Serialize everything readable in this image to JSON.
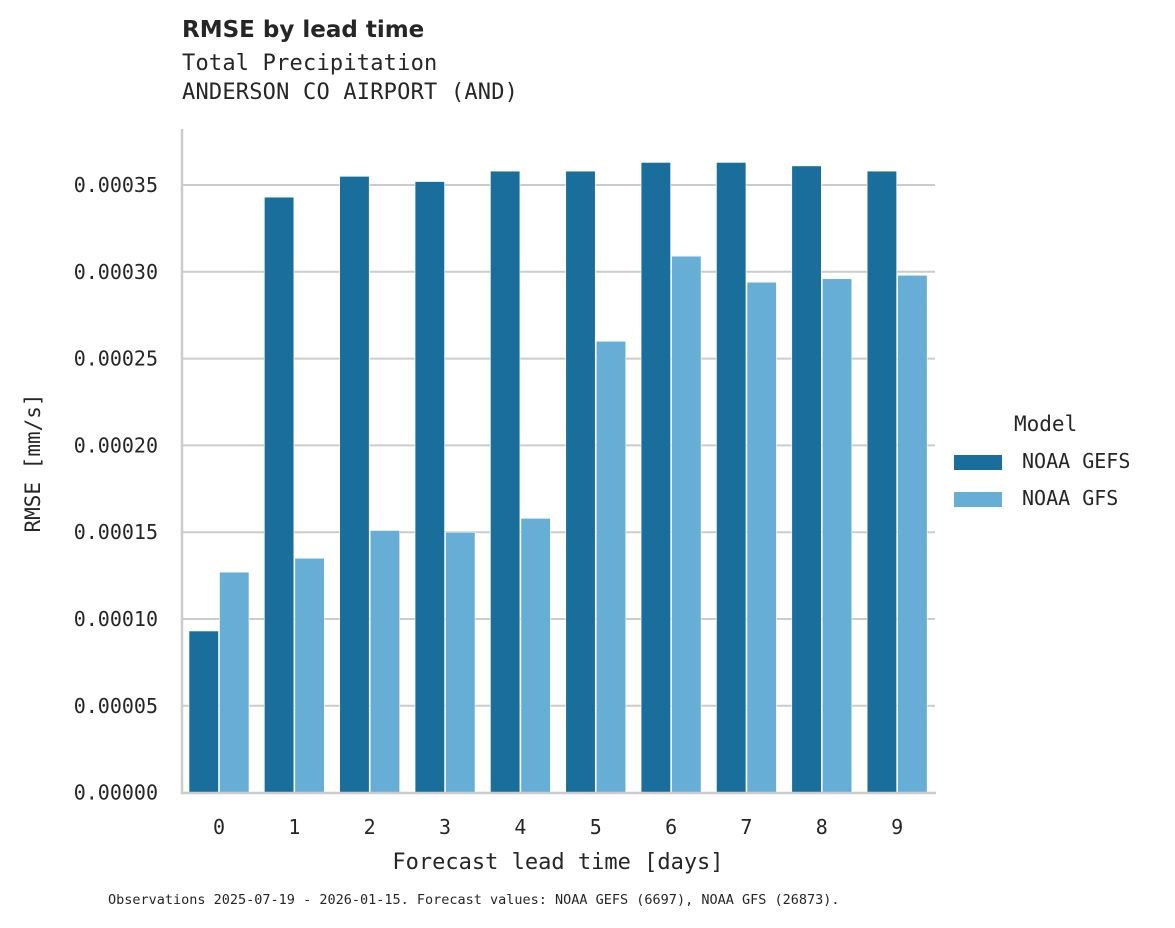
{
  "header": {
    "title": "RMSE by lead time",
    "subtitle_1": "Total Precipitation",
    "subtitle_2": "ANDERSON CO AIRPORT (AND)"
  },
  "legend": {
    "title": "Model",
    "items": [
      {
        "label": "NOAA GEFS",
        "color": "#1a6e9c"
      },
      {
        "label": "NOAA GFS",
        "color": "#67aed6"
      }
    ]
  },
  "footnote": "Observations 2025-07-19 - 2026-01-15. Forecast values: NOAA GEFS (6697), NOAA GFS (26873).",
  "chart_data": {
    "type": "bar",
    "title": "RMSE by lead time",
    "subtitle": "Total Precipitation — ANDERSON CO AIRPORT (AND)",
    "xlabel": "Forecast lead time [days]",
    "ylabel": "RMSE [mm/s]",
    "categories": [
      "0",
      "1",
      "2",
      "3",
      "4",
      "5",
      "6",
      "7",
      "8",
      "9"
    ],
    "series": [
      {
        "name": "NOAA GEFS",
        "color": "#1a6e9c",
        "values": [
          9.31e-05,
          0.000343,
          0.000355,
          0.000352,
          0.000358,
          0.000358,
          0.000363,
          0.000363,
          0.000361,
          0.000358
        ]
      },
      {
        "name": "NOAA GFS",
        "color": "#67aed6",
        "values": [
          0.000127,
          0.000135,
          0.000151,
          0.00015,
          0.000158,
          0.00026,
          0.000309,
          0.000294,
          0.000296,
          0.000298
        ]
      }
    ],
    "ylim": [
      0,
      0.00038
    ],
    "yticks": [
      "0.00000",
      "0.00005",
      "0.00010",
      "0.00015",
      "0.00020",
      "0.00025",
      "0.00030",
      "0.00035"
    ],
    "ytick_values": [
      0,
      5e-05,
      0.0001,
      0.00015,
      0.0002,
      0.00025,
      0.0003,
      0.00035
    ],
    "grid": "horizontal",
    "legend_position": "right",
    "legend_title": "Model"
  }
}
